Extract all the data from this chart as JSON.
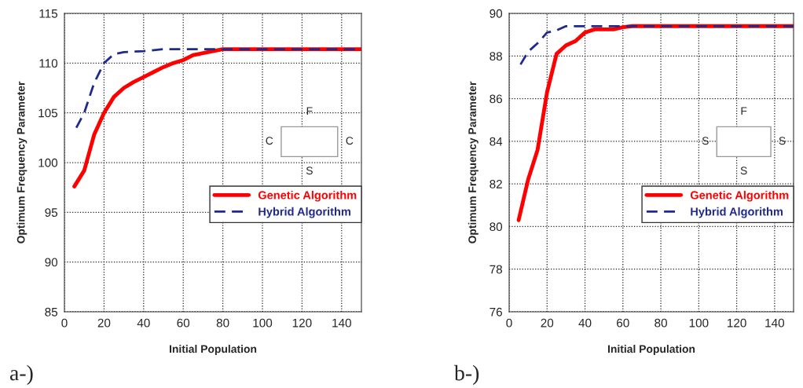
{
  "chart_data": [
    {
      "type": "line",
      "xlabel": "Initial Population",
      "ylabel": "Optimum Frequency Parameter",
      "xlim": [
        0,
        150
      ],
      "ylim": [
        85,
        115
      ],
      "xticks": [
        0,
        20,
        40,
        60,
        80,
        100,
        120,
        140
      ],
      "yticks": [
        85,
        90,
        95,
        100,
        105,
        110,
        115
      ],
      "grid": true,
      "legend": "right",
      "marker": "none",
      "annotations": [
        "a-)",
        "F",
        "C",
        "C",
        "S"
      ],
      "series": [
        {
          "name": "Genetic Algorithm",
          "color": "#ff0000",
          "line_style": "solid",
          "x": [
            5,
            10,
            15,
            20,
            25,
            30,
            35,
            40,
            45,
            50,
            55,
            60,
            65,
            70,
            75,
            80,
            85,
            150
          ],
          "values": [
            97.6,
            99.2,
            102.8,
            105,
            106.6,
            107.5,
            108.1,
            108.6,
            109.1,
            109.6,
            110,
            110.3,
            110.8,
            111,
            111.2,
            111.4,
            111.4,
            111.4
          ]
        },
        {
          "name": "Hybrid Algorithm",
          "color": "#1f2a8c",
          "line_style": "dashed",
          "x": [
            6,
            10,
            15,
            20,
            25,
            30,
            40,
            50,
            150
          ],
          "values": [
            103.5,
            105,
            108,
            110,
            110.9,
            111.1,
            111.2,
            111.4,
            111.4
          ]
        }
      ]
    },
    {
      "type": "line",
      "xlabel": "Initial Population",
      "ylabel": "Optimum Frequency Parameter",
      "xlim": [
        0,
        150
      ],
      "ylim": [
        76,
        90
      ],
      "xticks": [
        0,
        20,
        40,
        60,
        80,
        100,
        120,
        140
      ],
      "yticks": [
        76,
        78,
        80,
        82,
        84,
        86,
        88,
        90
      ],
      "grid": true,
      "legend": "right",
      "marker": "none",
      "annotations": [
        "b-)",
        "F",
        "S",
        "S",
        "S"
      ],
      "series": [
        {
          "name": "Genetic Algorithm",
          "color": "#ff0000",
          "line_style": "solid",
          "x": [
            5,
            10,
            15,
            20,
            25,
            30,
            35,
            40,
            45,
            55,
            60,
            65,
            150
          ],
          "values": [
            80.3,
            82.2,
            83.6,
            86.3,
            88.1,
            88.5,
            88.7,
            89.1,
            89.25,
            89.25,
            89.35,
            89.4,
            89.4
          ]
        },
        {
          "name": "Hybrid Algorithm",
          "color": "#1f2a8c",
          "line_style": "dashed",
          "x": [
            6,
            10,
            15,
            20,
            25,
            30,
            150
          ],
          "values": [
            87.6,
            88.2,
            88.6,
            89.1,
            89.2,
            89.4,
            89.4
          ]
        }
      ]
    }
  ]
}
